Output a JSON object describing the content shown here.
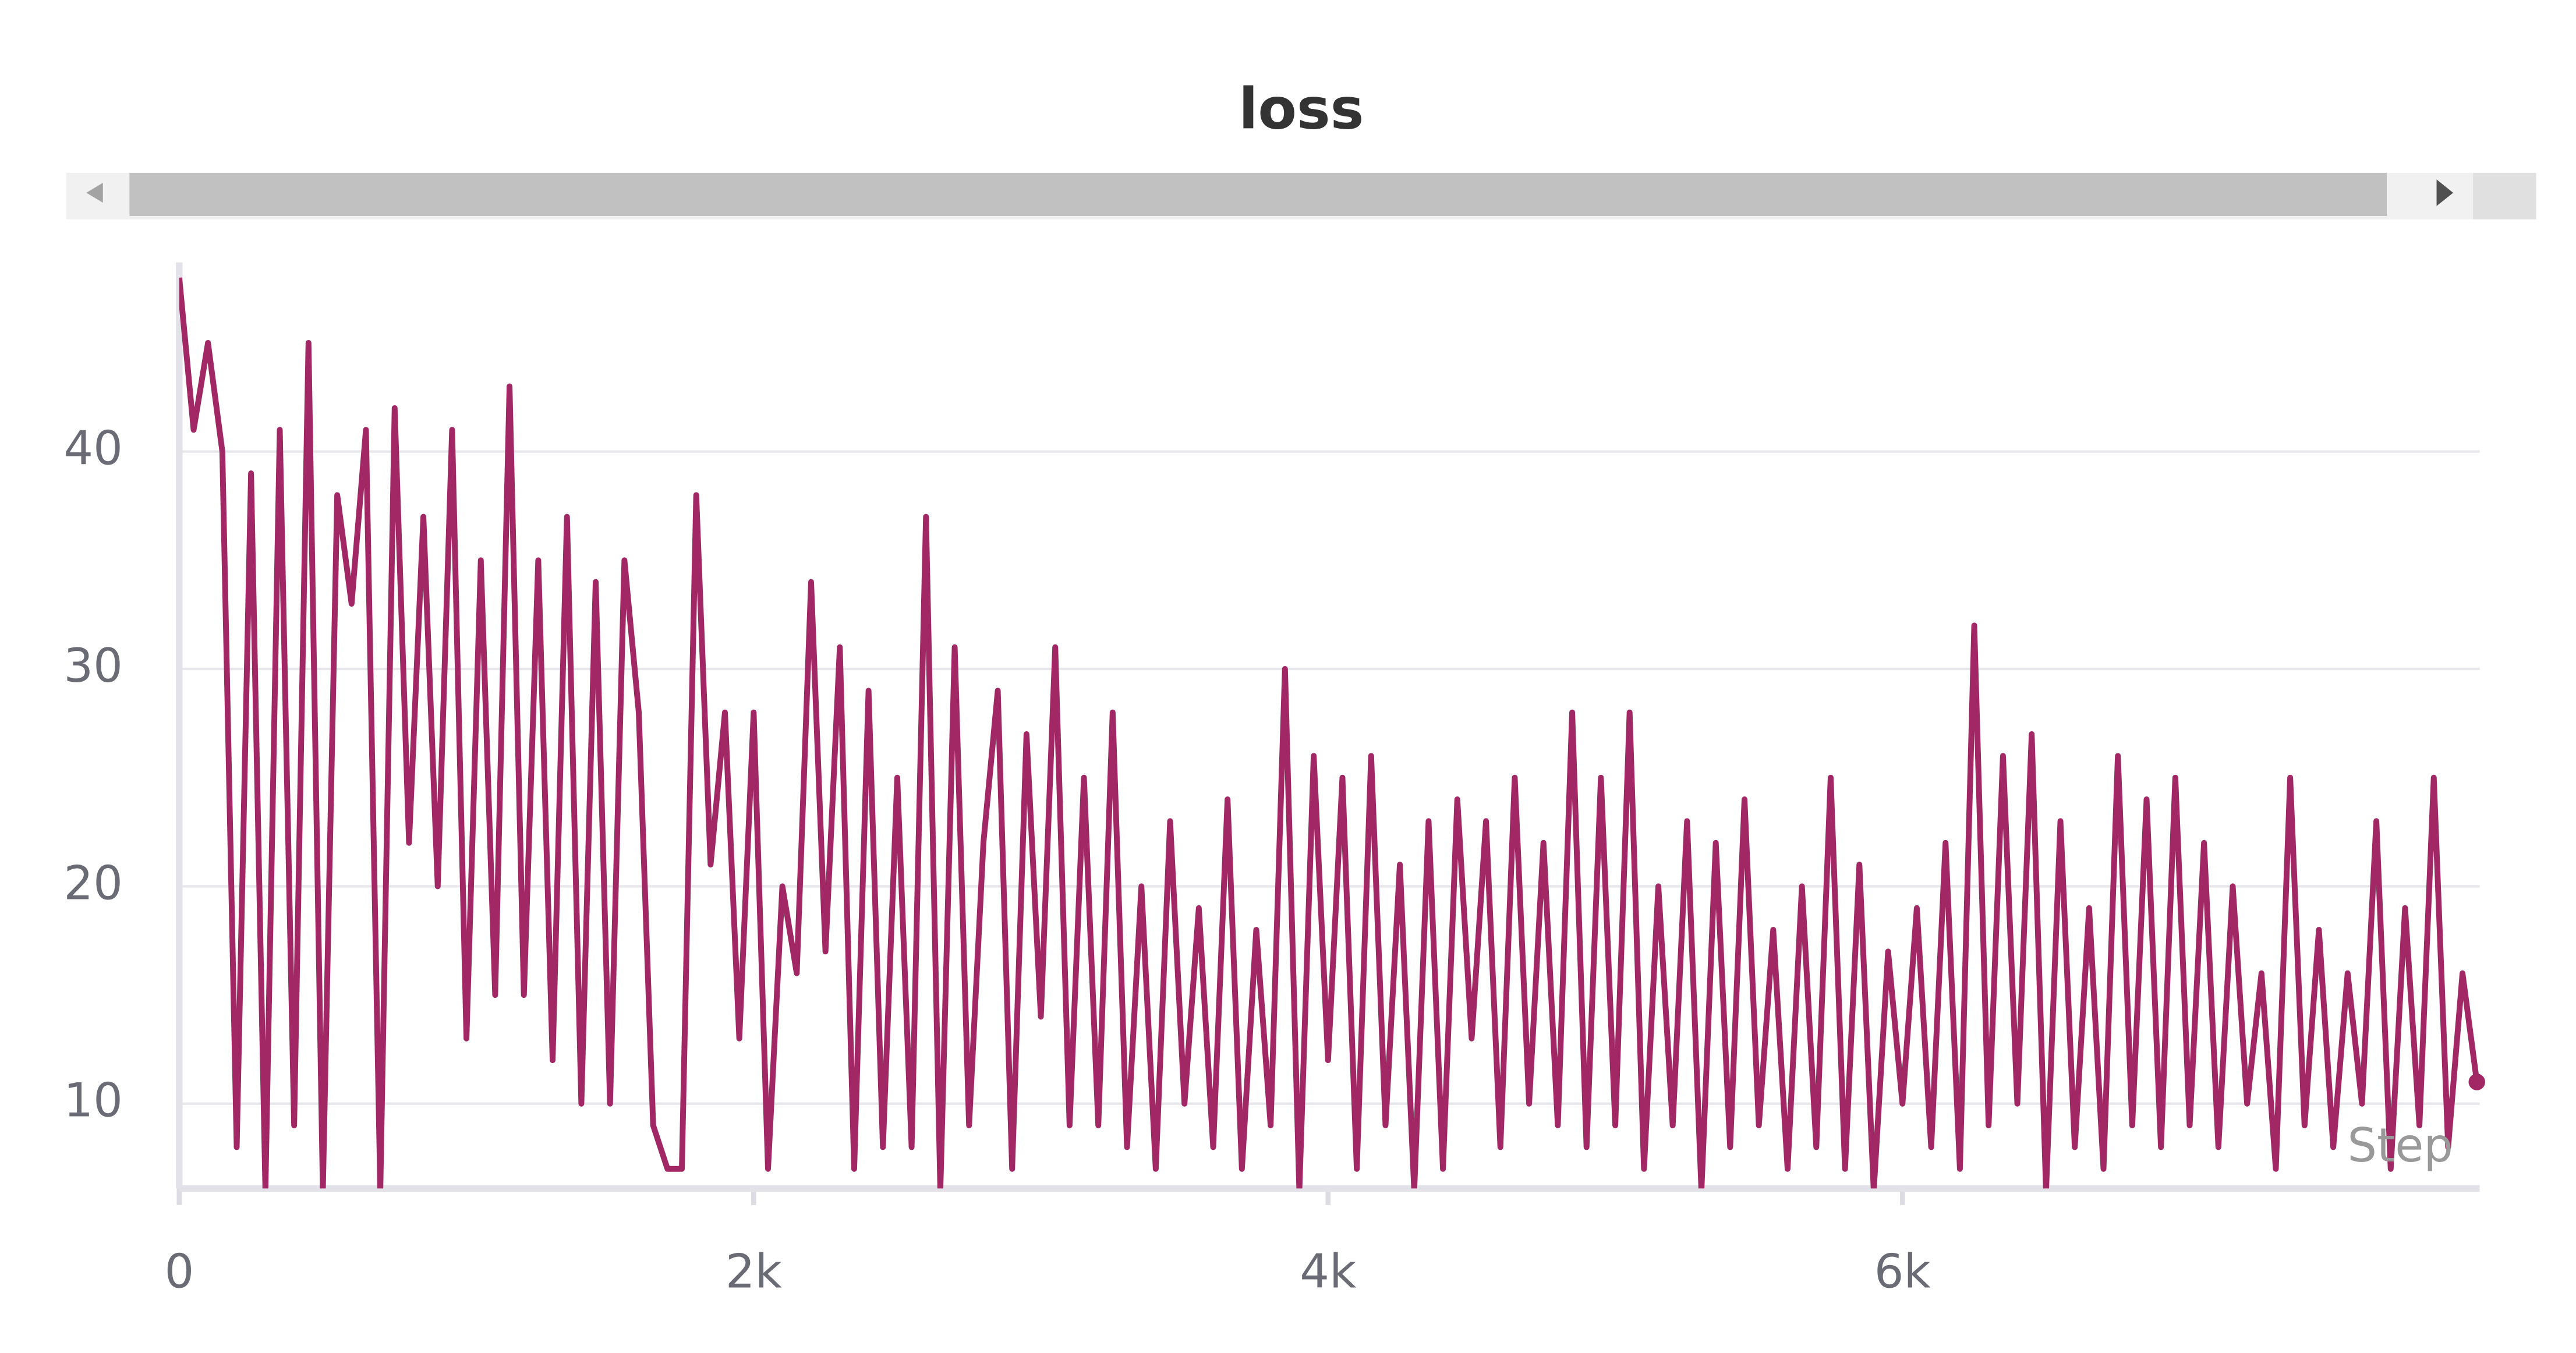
{
  "chart_data": {
    "type": "line",
    "title": "loss",
    "x_label": "Step",
    "x": [
      0,
      50,
      100,
      150,
      200,
      250,
      300,
      350,
      400,
      450,
      500,
      550,
      600,
      650,
      700,
      750,
      800,
      850,
      900,
      950,
      1000,
      1050,
      1100,
      1150,
      1200,
      1250,
      1300,
      1350,
      1400,
      1450,
      1500,
      1550,
      1600,
      1650,
      1700,
      1750,
      1800,
      1850,
      1900,
      1950,
      2000,
      2050,
      2100,
      2150,
      2200,
      2250,
      2300,
      2350,
      2400,
      2450,
      2500,
      2550,
      2600,
      2650,
      2700,
      2750,
      2800,
      2850,
      2900,
      2950,
      3000,
      3050,
      3100,
      3150,
      3200,
      3250,
      3300,
      3350,
      3400,
      3450,
      3500,
      3550,
      3600,
      3650,
      3700,
      3750,
      3800,
      3850,
      3900,
      3950,
      4000,
      4050,
      4100,
      4150,
      4200,
      4250,
      4300,
      4350,
      4400,
      4450,
      4500,
      4550,
      4600,
      4650,
      4700,
      4750,
      4800,
      4850,
      4900,
      4950,
      5000,
      5050,
      5100,
      5150,
      5200,
      5250,
      5300,
      5350,
      5400,
      5450,
      5500,
      5550,
      5600,
      5650,
      5700,
      5750,
      5800,
      5850,
      5900,
      5950,
      6000,
      6050,
      6100,
      6150,
      6200,
      6250,
      6300,
      6350,
      6400,
      6450,
      6500,
      6550,
      6600,
      6650,
      6700,
      6750,
      6800,
      6850,
      6900,
      6950,
      7000,
      7050,
      7100,
      7150,
      7200,
      7250,
      7300,
      7350,
      7400,
      7450,
      7500,
      7550,
      7600,
      7650,
      7700,
      7750,
      7800,
      7850,
      7900,
      7950,
      8000
    ],
    "values": [
      48,
      41,
      45,
      40,
      8,
      39,
      6,
      41,
      9,
      45,
      6,
      38,
      33,
      41,
      6,
      42,
      22,
      37,
      20,
      41,
      13,
      35,
      15,
      43,
      15,
      35,
      12,
      37,
      10,
      34,
      10,
      35,
      28,
      9,
      7,
      7,
      38,
      21,
      28,
      13,
      28,
      7,
      20,
      16,
      34,
      17,
      31,
      7,
      29,
      8,
      25,
      8,
      37,
      6,
      31,
      9,
      22,
      29,
      7,
      27,
      14,
      31,
      9,
      25,
      9,
      28,
      8,
      20,
      7,
      23,
      10,
      19,
      8,
      24,
      7,
      18,
      9,
      30,
      6,
      26,
      12,
      25,
      7,
      26,
      9,
      21,
      6,
      23,
      7,
      24,
      13,
      23,
      8,
      25,
      10,
      22,
      9,
      28,
      8,
      25,
      9,
      28,
      7,
      20,
      9,
      23,
      6,
      22,
      8,
      24,
      9,
      18,
      7,
      20,
      8,
      25,
      7,
      21,
      6,
      17,
      10,
      19,
      8,
      22,
      7,
      32,
      9,
      26,
      10,
      27,
      6,
      23,
      8,
      19,
      7,
      26,
      9,
      24,
      8,
      25,
      9,
      22,
      8,
      20,
      10,
      16,
      7,
      25,
      9,
      18,
      8,
      16,
      10,
      23,
      7,
      19,
      9,
      25,
      8,
      16,
      11
    ],
    "color": "#a12864",
    "xlim": [
      0,
      8010
    ],
    "ylim": [
      6.1,
      48.7
    ],
    "xticks": [
      0,
      {
        "value": 2000,
        "label": "2k"
      },
      {
        "value": 4000,
        "label": "4k"
      },
      {
        "value": 6000,
        "label": "6k"
      }
    ],
    "yticks": [
      10,
      20,
      30,
      40
    ],
    "grid": true
  }
}
